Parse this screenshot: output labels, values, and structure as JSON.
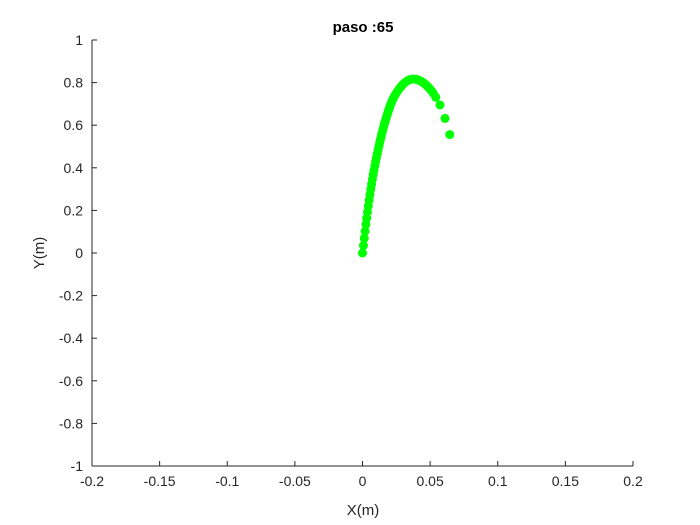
{
  "chart_data": {
    "type": "scatter",
    "title": "paso :65",
    "xlabel": "X(m)",
    "ylabel": "Y(m)",
    "xlim": [
      -0.2,
      0.2
    ],
    "ylim": [
      -1,
      1
    ],
    "xticks": [
      -0.2,
      -0.15,
      -0.1,
      -0.05,
      0,
      0.05,
      0.1,
      0.15,
      0.2
    ],
    "xtick_labels": [
      "-0.2",
      "-0.15",
      "-0.1",
      "-0.05",
      "0",
      "0.05",
      "0.1",
      "0.15",
      "0.2"
    ],
    "yticks": [
      -1,
      -0.8,
      -0.6,
      -0.4,
      -0.2,
      0,
      0.2,
      0.4,
      0.6,
      0.8,
      1
    ],
    "ytick_labels": [
      "-1",
      "-0.8",
      "-0.6",
      "-0.4",
      "-0.2",
      "0",
      "0.2",
      "0.4",
      "0.6",
      "0.8",
      "1"
    ],
    "grid": false,
    "marker_color": "#00ff00",
    "axis_color": "#262626",
    "x": [
      0.0,
      0.0007,
      0.0013,
      0.0019,
      0.0025,
      0.0031,
      0.0037,
      0.0043,
      0.0049,
      0.0055,
      0.0061,
      0.0067,
      0.0073,
      0.0079,
      0.0085,
      0.0091,
      0.0097,
      0.0103,
      0.0109,
      0.0115,
      0.0121,
      0.0127,
      0.0133,
      0.0139,
      0.0145,
      0.0151,
      0.0157,
      0.0163,
      0.0169,
      0.0175,
      0.0181,
      0.0187,
      0.0193,
      0.0199,
      0.0205,
      0.0211,
      0.0218,
      0.0226,
      0.0235,
      0.0245,
      0.0256,
      0.0268,
      0.0281,
      0.0294,
      0.0308,
      0.0322,
      0.0336,
      0.035,
      0.0364,
      0.0378,
      0.0392,
      0.0405,
      0.0418,
      0.0431,
      0.0444,
      0.0457,
      0.047,
      0.0483,
      0.0496,
      0.0509,
      0.0522,
      0.0542,
      0.0573,
      0.061,
      0.0645
    ],
    "y": [
      0.0,
      0.035,
      0.069,
      0.102,
      0.134,
      0.164,
      0.193,
      0.221,
      0.248,
      0.274,
      0.299,
      0.323,
      0.346,
      0.368,
      0.389,
      0.409,
      0.429,
      0.448,
      0.466,
      0.484,
      0.501,
      0.518,
      0.534,
      0.55,
      0.565,
      0.58,
      0.594,
      0.608,
      0.621,
      0.634,
      0.646,
      0.658,
      0.67,
      0.681,
      0.692,
      0.702,
      0.713,
      0.724,
      0.735,
      0.746,
      0.757,
      0.768,
      0.778,
      0.788,
      0.797,
      0.804,
      0.81,
      0.814,
      0.816,
      0.817,
      0.816,
      0.814,
      0.811,
      0.807,
      0.802,
      0.796,
      0.789,
      0.781,
      0.772,
      0.762,
      0.751,
      0.731,
      0.695,
      0.632,
      0.556
    ]
  }
}
